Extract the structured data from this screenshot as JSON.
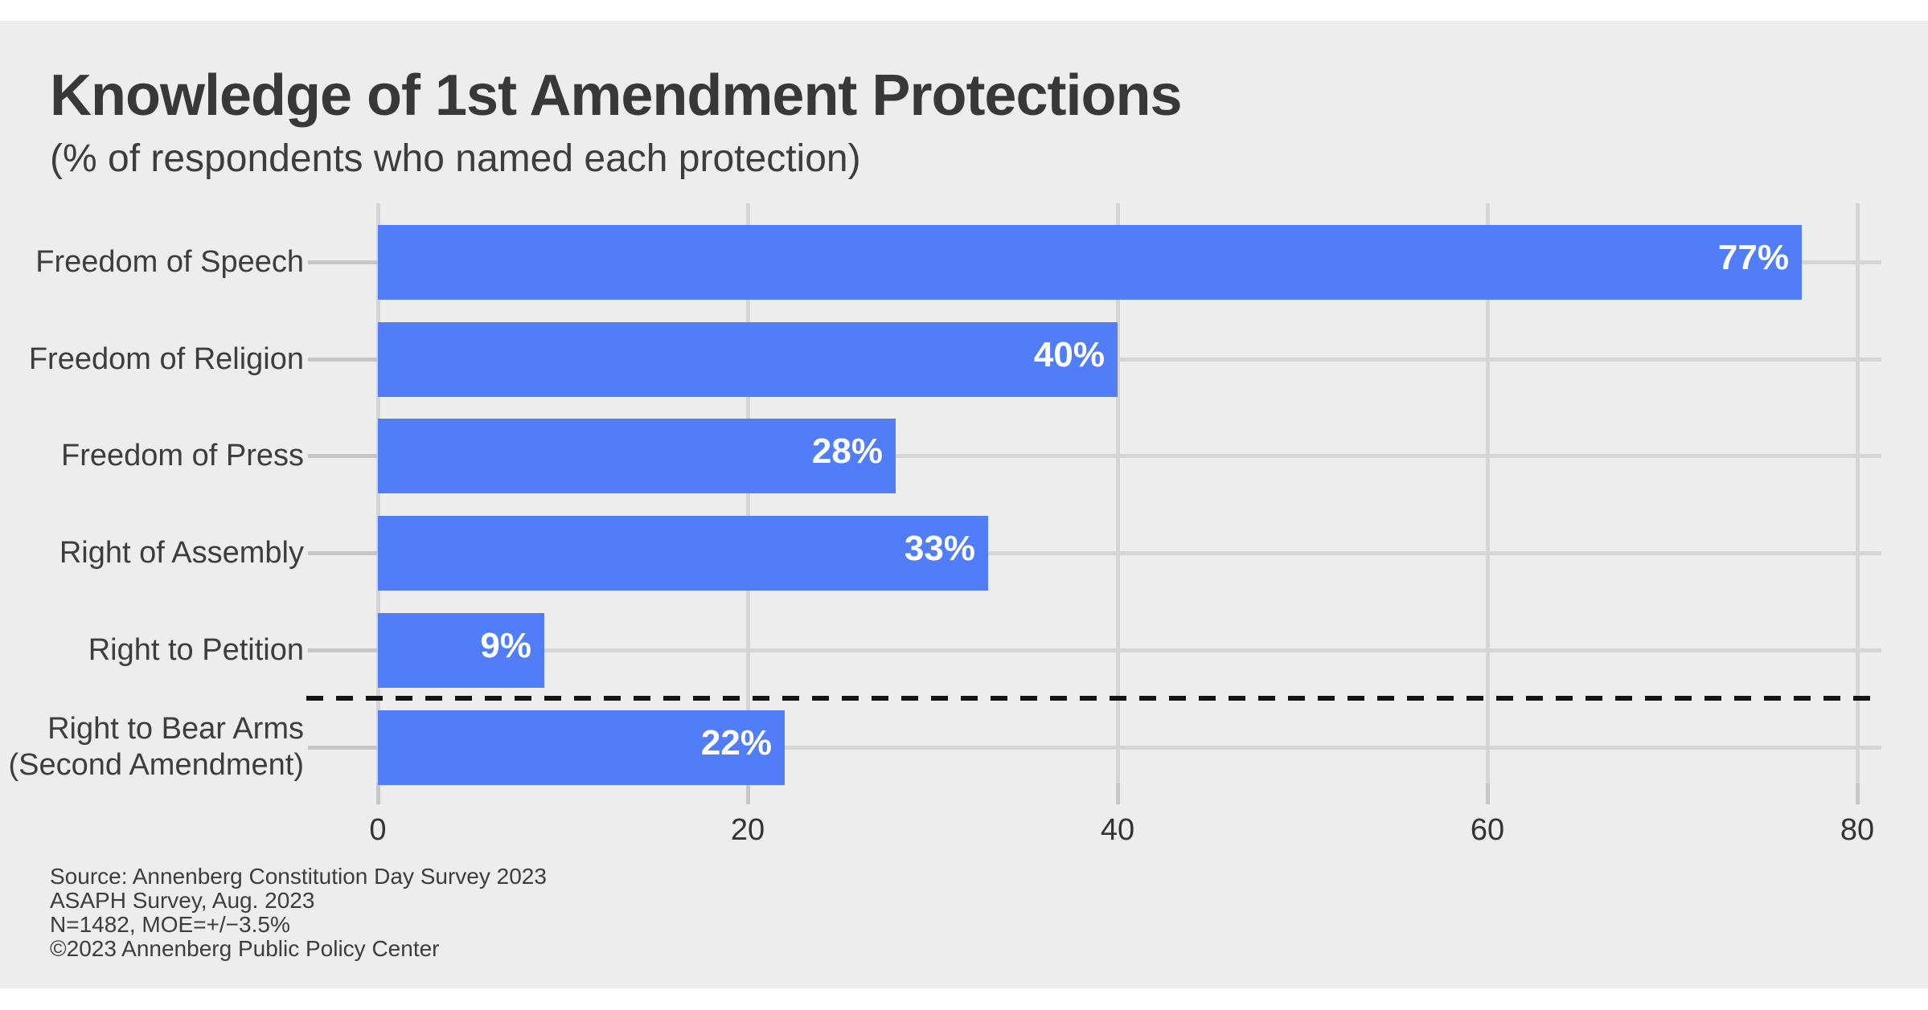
{
  "page": {
    "background_color": "#ededed",
    "band_color": "#ffffff"
  },
  "header": {
    "title": "Knowledge of 1st Amendment Protections",
    "subtitle": "(% of respondents who named each protection)"
  },
  "chart_data": {
    "type": "bar",
    "orientation": "horizontal",
    "title": "Knowledge of 1st Amendment Protections",
    "subtitle": "(% of respondents who named each protection)",
    "categories": [
      [
        "Freedom of Speech"
      ],
      [
        "Freedom of Religion"
      ],
      [
        "Freedom of Press"
      ],
      [
        "Right of Assembly"
      ],
      [
        "Right to Petition"
      ],
      [
        "Right to Bear Arms",
        "(Second Amendment)"
      ]
    ],
    "values": [
      77,
      40,
      28,
      33,
      9,
      22
    ],
    "value_labels": [
      "77%",
      "40%",
      "28%",
      "33%",
      "9%",
      "22%"
    ],
    "x_ticks": [
      0,
      20,
      40,
      60,
      80
    ],
    "xlim": [
      0,
      83
    ],
    "grid": true,
    "legend": "none",
    "bar_color": "#517ef8",
    "value_label_color": "#ffffff",
    "separator": {
      "type": "dashed-line",
      "color": "#141414",
      "between": [
        "Right to Petition",
        "Right to Bear Arms (Second Amendment)"
      ]
    }
  },
  "footer": {
    "lines": [
      "Source: Annenberg Constitution Day Survey 2023",
      "ASAPH Survey, Aug. 2023",
      "N=1482, MOE=+/−3.5%",
      "©2023 Annenberg Public Policy Center"
    ]
  }
}
